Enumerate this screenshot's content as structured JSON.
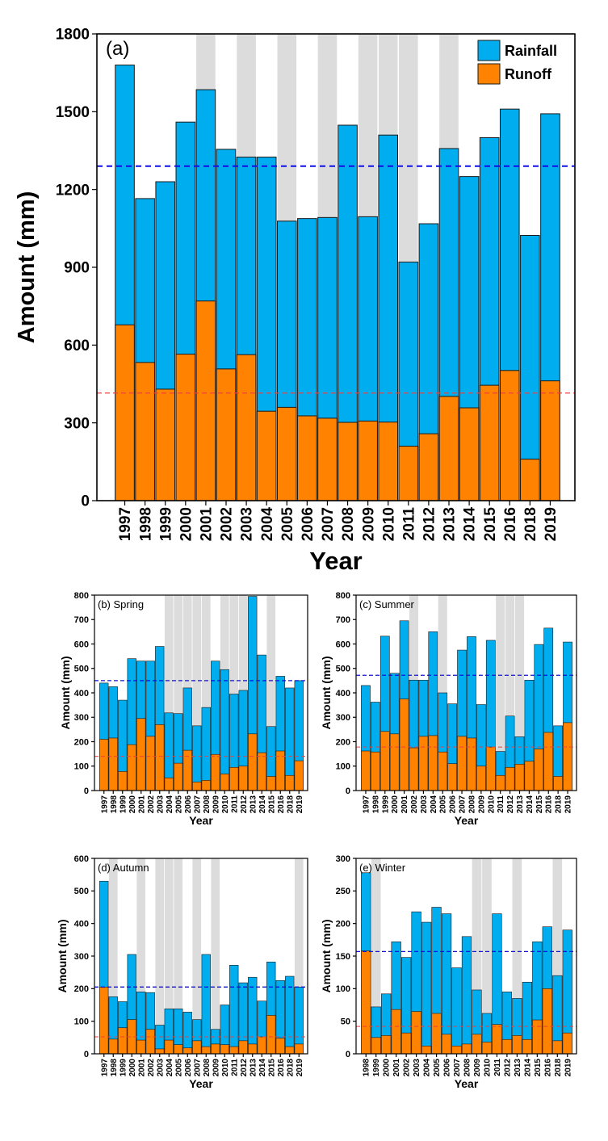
{
  "colors": {
    "rainfall": "#00ADEF",
    "runoff": "#FF8200",
    "shade": "#DCDCDC",
    "mean_rainfall_line": "#1010E0",
    "mean_runoff_line": "#F04040"
  },
  "chart_data": [
    {
      "type": "bar",
      "panel_label": "(a)",
      "xlabel": "Year",
      "ylabel": "Amount (mm)",
      "ylim": [
        0,
        1800
      ],
      "yticks": [
        0,
        300,
        600,
        900,
        1200,
        1500,
        1800
      ],
      "legend": {
        "placement": "top-right",
        "entries": [
          "Rainfall",
          "Runoff"
        ]
      },
      "categories": [
        "1997",
        "1998",
        "1999",
        "2000",
        "2001",
        "2002",
        "2003",
        "2004",
        "2005",
        "2006",
        "2007",
        "2008",
        "2009",
        "2010",
        "2011",
        "2012",
        "2013",
        "2014",
        "2015",
        "2016",
        "2018",
        "2019"
      ],
      "series": [
        {
          "name": "Rainfall",
          "values": [
            1680,
            1165,
            1230,
            1460,
            1585,
            1355,
            1325,
            1325,
            1078,
            1088,
            1092,
            1448,
            1095,
            1410,
            920,
            1068,
            1358,
            1250,
            1400,
            1510,
            1023,
            1492
          ]
        },
        {
          "name": "Runoff",
          "values": [
            678,
            533,
            430,
            565,
            770,
            508,
            563,
            345,
            360,
            327,
            318,
            302,
            307,
            303,
            210,
            258,
            402,
            358,
            445,
            502,
            160,
            462
          ]
        }
      ],
      "shaded_years": [
        "2001",
        "2003",
        "2005",
        "2007",
        "2009",
        "2010",
        "2011",
        "2013"
      ],
      "mean_rainfall": 1290,
      "mean_runoff": 415
    },
    {
      "type": "bar",
      "panel_label": "(b) Spring",
      "xlabel": "Year",
      "ylabel": "Amount (mm)",
      "ylim": [
        0,
        800
      ],
      "yticks": [
        0,
        100,
        200,
        300,
        400,
        500,
        600,
        700,
        800
      ],
      "categories": [
        "1997",
        "1998",
        "1999",
        "2000",
        "2001",
        "2002",
        "2003",
        "2004",
        "2005",
        "2006",
        "2007",
        "2008",
        "2009",
        "2010",
        "2011",
        "2012",
        "2013",
        "2014",
        "2015",
        "2016",
        "2018",
        "2019"
      ],
      "series": [
        {
          "name": "Rainfall",
          "values": [
            440,
            425,
            370,
            540,
            530,
            530,
            590,
            318,
            315,
            420,
            265,
            340,
            530,
            495,
            395,
            410,
            795,
            555,
            262,
            468,
            420,
            450
          ]
        },
        {
          "name": "Runoff",
          "values": [
            210,
            215,
            78,
            188,
            295,
            222,
            270,
            52,
            112,
            165,
            35,
            42,
            148,
            68,
            95,
            100,
            232,
            155,
            58,
            162,
            62,
            122
          ]
        }
      ],
      "shaded_years": [
        "2004",
        "2005",
        "2006",
        "2007",
        "2008",
        "2010",
        "2011",
        "2012",
        "2015"
      ],
      "mean_rainfall": 450,
      "mean_runoff": 140
    },
    {
      "type": "bar",
      "panel_label": "(c) Summer",
      "xlabel": "Year",
      "ylabel": "Amount (mm)",
      "ylim": [
        0,
        800
      ],
      "yticks": [
        0,
        100,
        200,
        300,
        400,
        500,
        600,
        700,
        800
      ],
      "categories": [
        "1997",
        "1998",
        "1999",
        "2000",
        "2001",
        "2002",
        "2003",
        "2004",
        "2005",
        "2006",
        "2007",
        "2008",
        "2009",
        "2010",
        "2011",
        "2012",
        "2013",
        "2014",
        "2015",
        "2016",
        "2018",
        "2019"
      ],
      "series": [
        {
          "name": "Rainfall",
          "values": [
            430,
            362,
            632,
            480,
            695,
            452,
            452,
            650,
            400,
            355,
            575,
            630,
            352,
            615,
            160,
            305,
            220,
            452,
            598,
            665,
            265,
            608
          ]
        },
        {
          "name": "Runoff",
          "values": [
            162,
            158,
            242,
            232,
            375,
            175,
            222,
            225,
            158,
            110,
            222,
            215,
            100,
            178,
            62,
            95,
            108,
            120,
            170,
            238,
            58,
            278
          ]
        }
      ],
      "shaded_years": [
        "2002",
        "2005",
        "2011",
        "2012",
        "2013"
      ],
      "mean_rainfall": 472,
      "mean_runoff": 178
    },
    {
      "type": "bar",
      "panel_label": "(d) Autumn",
      "xlabel": "Year",
      "ylabel": "Amount (mm)",
      "ylim": [
        0,
        600
      ],
      "yticks": [
        0,
        100,
        200,
        300,
        400,
        500,
        600
      ],
      "categories": [
        "1997",
        "1998",
        "1999",
        "2000",
        "2001",
        "2002",
        "2003",
        "2004",
        "2005",
        "2006",
        "2007",
        "2008",
        "2009",
        "2010",
        "2011",
        "2012",
        "2013",
        "2014",
        "2015",
        "2016",
        "2018",
        "2019"
      ],
      "series": [
        {
          "name": "Rainfall",
          "values": [
            530,
            175,
            160,
            305,
            190,
            188,
            88,
            138,
            138,
            128,
            105,
            305,
            75,
            150,
            272,
            218,
            235,
            162,
            282,
            225,
            238,
            205
          ]
        },
        {
          "name": "Runoff",
          "values": [
            205,
            45,
            80,
            105,
            42,
            75,
            15,
            42,
            28,
            18,
            40,
            22,
            30,
            28,
            22,
            40,
            30,
            52,
            118,
            48,
            22,
            30
          ]
        }
      ],
      "shaded_years": [
        "1998",
        "2001",
        "2003",
        "2004",
        "2005",
        "2007",
        "2009",
        "2019"
      ],
      "mean_rainfall": 205,
      "mean_runoff": 52
    },
    {
      "type": "bar",
      "panel_label": "(e) Winter",
      "xlabel": "Year",
      "ylabel": "Amount (mm)",
      "ylim": [
        0,
        300
      ],
      "yticks": [
        0,
        50,
        100,
        150,
        200,
        250,
        300
      ],
      "categories": [
        "1998",
        "1999",
        "2000",
        "2001",
        "2002",
        "2003",
        "2004",
        "2005",
        "2006",
        "2007",
        "2008",
        "2009",
        "2010",
        "2011",
        "2012",
        "2013",
        "2014",
        "2015",
        "2016",
        "2018",
        "2019"
      ],
      "series": [
        {
          "name": "Rainfall",
          "values": [
            278,
            72,
            92,
            172,
            148,
            218,
            202,
            225,
            215,
            132,
            180,
            98,
            62,
            215,
            95,
            85,
            110,
            172,
            195,
            120,
            190
          ]
        },
        {
          "name": "Runoff",
          "values": [
            158,
            25,
            28,
            68,
            32,
            65,
            12,
            62,
            30,
            12,
            15,
            30,
            18,
            45,
            22,
            28,
            22,
            52,
            100,
            20,
            32
          ]
        }
      ],
      "shaded_years": [
        "1999",
        "2009",
        "2010",
        "2013",
        "2018"
      ],
      "mean_rainfall": 157,
      "mean_runoff": 42
    }
  ]
}
